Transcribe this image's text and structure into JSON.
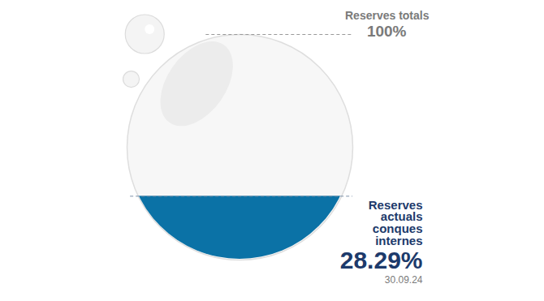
{
  "chart_data": {
    "type": "fill_gauge",
    "categories": [
      "Reserves totals",
      "Reserves actuals conques internes"
    ],
    "values": [
      100,
      28.29
    ],
    "value_labels": [
      "100%",
      "28.29%"
    ],
    "annotations": [
      "30.09.24"
    ],
    "ylim": [
      0,
      100
    ],
    "tick_labels": false,
    "color": "#0b72a6"
  }
}
